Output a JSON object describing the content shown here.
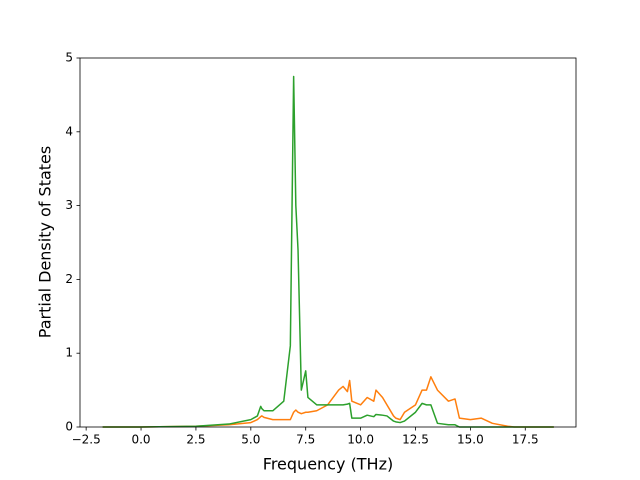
{
  "chart_data": {
    "type": "line",
    "xlabel": "Frequency (THz)",
    "ylabel": "Partial Density of States",
    "x": [
      -1.75,
      0,
      2.5,
      4,
      5,
      5.3,
      5.45,
      5.5,
      5.6,
      6,
      6.5,
      6.8,
      6.95,
      7.05,
      7.15,
      7.3,
      7.5,
      7.6,
      8,
      8.5,
      9,
      9.2,
      9.4,
      9.5,
      9.6,
      10,
      10.3,
      10.6,
      10.7,
      11,
      11.2,
      11.5,
      11.6,
      11.8,
      12,
      12.5,
      12.8,
      13,
      13.2,
      13.5,
      14,
      14.3,
      14.5,
      15,
      15.5,
      16,
      16.7,
      17,
      18.8
    ],
    "series": [
      {
        "color": "#ff7f0e",
        "values": [
          0,
          0,
          0.01,
          0.03,
          0.06,
          0.1,
          0.14,
          0.15,
          0.13,
          0.1,
          0.1,
          0.1,
          0.2,
          0.23,
          0.2,
          0.18,
          0.2,
          0.2,
          0.22,
          0.3,
          0.5,
          0.55,
          0.48,
          0.63,
          0.35,
          0.3,
          0.4,
          0.35,
          0.5,
          0.4,
          0.3,
          0.15,
          0.12,
          0.1,
          0.2,
          0.3,
          0.5,
          0.5,
          0.68,
          0.5,
          0.35,
          0.38,
          0.12,
          0.1,
          0.12,
          0.05,
          0.01,
          0,
          0
        ]
      },
      {
        "color": "#2ca02c",
        "values": [
          0,
          0,
          0.01,
          0.04,
          0.1,
          0.15,
          0.28,
          0.25,
          0.22,
          0.22,
          0.35,
          1.1,
          4.75,
          3.0,
          2.4,
          0.5,
          0.76,
          0.4,
          0.3,
          0.3,
          0.3,
          0.3,
          0.31,
          0.32,
          0.12,
          0.12,
          0.16,
          0.14,
          0.17,
          0.16,
          0.15,
          0.08,
          0.07,
          0.06,
          0.08,
          0.2,
          0.32,
          0.3,
          0.3,
          0.05,
          0.03,
          0.03,
          0,
          0,
          0,
          0,
          0,
          0,
          0
        ]
      }
    ],
    "xlim": [
      -2.78,
      19.81
    ],
    "ylim": [
      0,
      5
    ],
    "xticks": [
      {
        "value": -2.5,
        "label": "−2.5"
      },
      {
        "value": 0,
        "label": "0.0"
      },
      2.5,
      {
        "value": 5,
        "label": "5.0"
      },
      7.5,
      {
        "value": 10,
        "label": "10.0"
      },
      12.5,
      {
        "value": 15,
        "label": "15.0"
      },
      17.5
    ],
    "yticks": [
      0,
      1,
      2,
      3,
      4,
      5
    ],
    "grid": false
  }
}
